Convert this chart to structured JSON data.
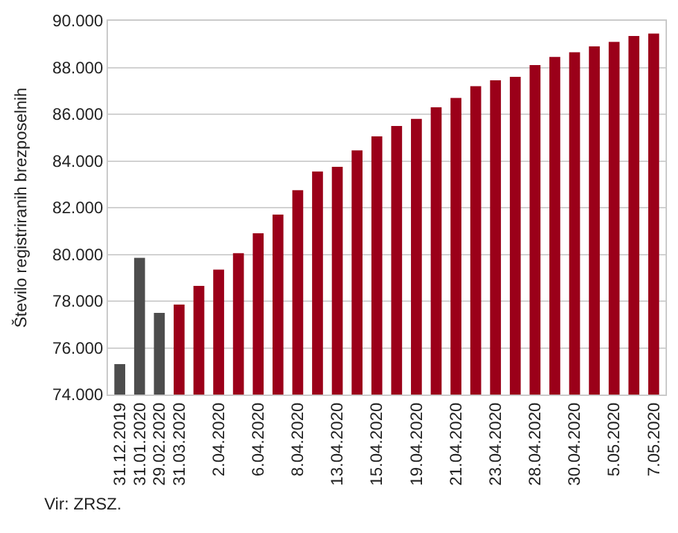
{
  "chart_data": {
    "type": "bar",
    "ylabel": "Število registriranih brezposelnih",
    "categories": [
      "31.12.2019",
      "31.01.2020",
      "29.02.2020",
      "31.03.2020",
      null,
      "2.04.2020",
      null,
      "6.04.2020",
      null,
      "8.04.2020",
      null,
      "13.04.2020",
      null,
      "15.04.2020",
      null,
      "19.04.2020",
      null,
      "21.04.2020",
      null,
      "23.04.2020",
      null,
      "28.04.2020",
      null,
      "30.04.2020",
      null,
      "5.05.2020",
      null,
      "7.05.2020"
    ],
    "values": [
      75300,
      79850,
      77500,
      77850,
      78650,
      79350,
      80050,
      80900,
      81700,
      82750,
      83550,
      83750,
      84450,
      85050,
      85500,
      85800,
      86300,
      86700,
      87200,
      87450,
      87600,
      88100,
      88450,
      88650,
      88900,
      89100,
      89350,
      89450
    ],
    "colors": [
      "#4d4d4d",
      "#4d4d4d",
      "#4d4d4d",
      "#9b0019",
      "#9b0019",
      "#9b0019",
      "#9b0019",
      "#9b0019",
      "#9b0019",
      "#9b0019",
      "#9b0019",
      "#9b0019",
      "#9b0019",
      "#9b0019",
      "#9b0019",
      "#9b0019",
      "#9b0019",
      "#9b0019",
      "#9b0019",
      "#9b0019",
      "#9b0019",
      "#9b0019",
      "#9b0019",
      "#9b0019",
      "#9b0019",
      "#9b0019",
      "#9b0019",
      "#9b0019"
    ],
    "ylim": [
      74000,
      90000
    ],
    "yticks": [
      {
        "value": 74000,
        "label": "74.000"
      },
      {
        "value": 76000,
        "label": "76.000"
      },
      {
        "value": 78000,
        "label": "78.000"
      },
      {
        "value": 80000,
        "label": "80.000"
      },
      {
        "value": 82000,
        "label": "82.000"
      },
      {
        "value": 84000,
        "label": "84.000"
      },
      {
        "value": 86000,
        "label": "86.000"
      },
      {
        "value": 88000,
        "label": "88.000"
      },
      {
        "value": 90000,
        "label": "90.000"
      }
    ],
    "grid": "y",
    "annotations": [
      "Vir: ZRSZ."
    ]
  }
}
